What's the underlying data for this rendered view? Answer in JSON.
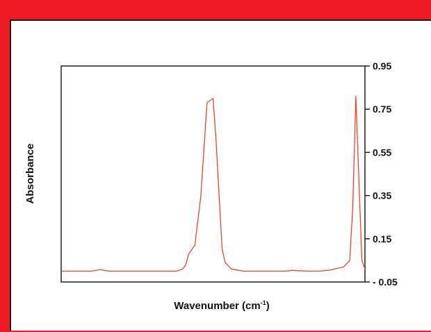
{
  "chart_data": {
    "type": "line",
    "title": "",
    "xlabel_text": "Wavenumber (cm",
    "xlabel_sup": "-1",
    "xlabel_close": ")",
    "ylabel": "Absorbance",
    "ylim": [
      -0.05,
      0.95
    ],
    "y_ticks": [
      0.95,
      0.75,
      0.55,
      0.35,
      0.15,
      -0.05
    ],
    "y_tick_labels": [
      "0.95",
      "0.75",
      "0.55",
      "0.35",
      "0.15",
      "- 0.05"
    ],
    "y_axis_side": "right",
    "grid": false,
    "series_color": "#e8442a",
    "series": [
      {
        "x": [
          0,
          5,
          10,
          12,
          13,
          14,
          16,
          18,
          22,
          27,
          32,
          38,
          40,
          41,
          42,
          44,
          46,
          48,
          50,
          51,
          52,
          53,
          54,
          56,
          60,
          65,
          70,
          74,
          76,
          78,
          82,
          85,
          88,
          90,
          93,
          95,
          96,
          97,
          98,
          99,
          100
        ],
        "y": [
          0.0,
          0.0,
          0.0,
          0.005,
          0.008,
          0.004,
          0.0,
          0.0,
          0.0,
          0.0,
          0.0,
          0.0,
          0.01,
          0.03,
          0.08,
          0.12,
          0.35,
          0.78,
          0.8,
          0.6,
          0.35,
          0.1,
          0.04,
          0.01,
          0.0,
          0.0,
          0.0,
          0.0,
          0.004,
          0.002,
          0.0,
          0.0,
          0.004,
          0.01,
          0.02,
          0.05,
          0.3,
          0.81,
          0.42,
          0.05,
          0.01
        ]
      }
    ]
  }
}
